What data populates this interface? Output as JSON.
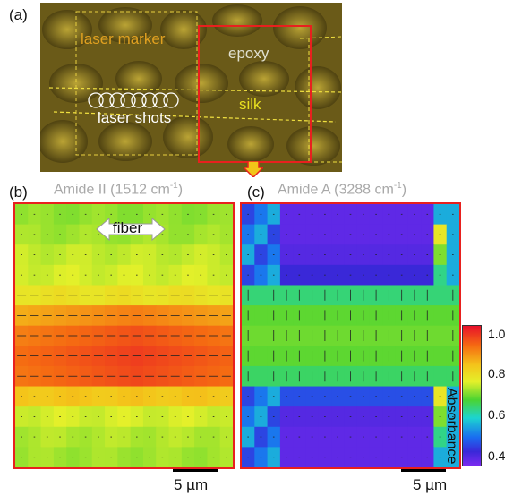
{
  "panels": {
    "a": {
      "letter": "(a)",
      "labels": {
        "laser_marker": "laser marker",
        "epoxy": "epoxy",
        "silk": "silk",
        "laser_shots": "laser shots"
      }
    },
    "b": {
      "letter": "(b)",
      "title_main": "Amide II (1512 cm",
      "title_sup": "-1",
      "title_end": ")",
      "arrow_label": "fiber",
      "scale_label": "5 µm"
    },
    "c": {
      "letter": "(c)",
      "title_main": "Amide A (3288 cm",
      "title_sup": "-1",
      "title_end": ")",
      "scale_label": "5 µm"
    }
  },
  "colorbar": {
    "title": "Absorbance",
    "ticks": [
      "1.0",
      "0.8",
      "0.6",
      "0.4"
    ],
    "range": [
      0.35,
      1.05
    ]
  },
  "colors": {
    "frame": "#e8201e",
    "marker_text": "#e0a020",
    "silk_text": "#e8e020",
    "epoxy_text": "#e0e0d0"
  },
  "chart_data": [
    {
      "type": "heatmap",
      "title": "Amide II (1512 cm-1)",
      "rows": 13,
      "cols": 17,
      "row_values": [
        0.72,
        0.73,
        0.75,
        0.76,
        0.8,
        0.9,
        0.95,
        0.97,
        0.96,
        0.85,
        0.76,
        0.74,
        0.73
      ],
      "notes": "rows shown as absorbance; slight variation across columns"
    },
    {
      "type": "heatmap",
      "title": "Amide A (3288 cm-1)",
      "rows": 13,
      "cols": 17,
      "row_values": [
        0.38,
        0.38,
        0.39,
        0.42,
        0.64,
        0.69,
        0.7,
        0.69,
        0.65,
        0.46,
        0.39,
        0.38,
        0.38
      ]
    }
  ]
}
